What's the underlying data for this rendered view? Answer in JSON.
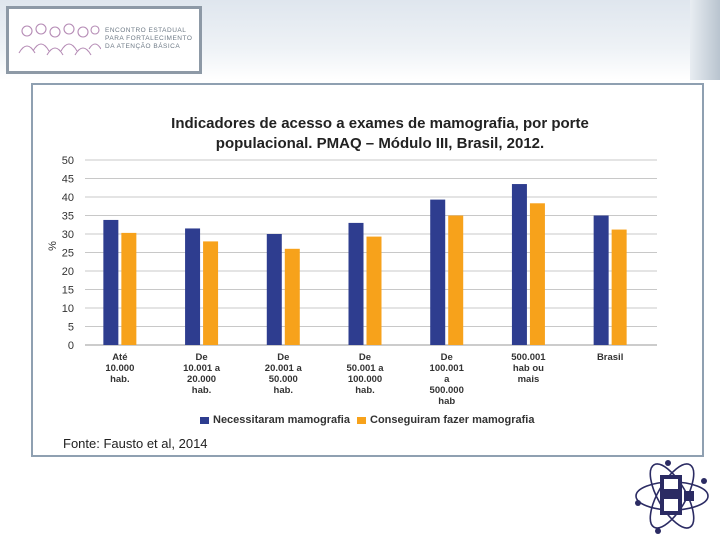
{
  "header": {
    "logo_lines": [
      "ENCONTRO ESTADUAL",
      "PARA FORTALECIMENTO",
      "DA ATENÇÃO BÁSICA"
    ]
  },
  "chart_data": {
    "type": "bar",
    "title_line1": "Indicadores de acesso a exames de mamografia, por porte",
    "title_line2": "populacional. PMAQ – Módulo III, Brasil, 2012.",
    "ylabel": "%",
    "xlabel": "",
    "ylim": [
      0,
      50
    ],
    "yticks": [
      0,
      5,
      10,
      15,
      20,
      25,
      30,
      35,
      40,
      45,
      50
    ],
    "categories": [
      [
        "Até",
        "10.000",
        "hab."
      ],
      [
        "De",
        "10.001 a",
        "20.000",
        "hab."
      ],
      [
        "De",
        "20.001 a",
        "50.000",
        "hab."
      ],
      [
        "De",
        "50.001 a",
        "100.000",
        "hab."
      ],
      [
        "De",
        "100.001",
        "a",
        "500.000",
        "hab"
      ],
      [
        "500.001",
        "hab ou",
        "mais"
      ],
      [
        "Brasil"
      ]
    ],
    "series": [
      {
        "name": "Necessitaram mamografia",
        "color": "#2e3d8f",
        "values": [
          33.8,
          31.5,
          30.0,
          33.0,
          39.3,
          43.5,
          35.0
        ]
      },
      {
        "name": "Conseguiram fazer mamografia",
        "color": "#f7a21b",
        "values": [
          30.3,
          28.0,
          26.0,
          29.3,
          35.0,
          38.3,
          31.2
        ]
      }
    ],
    "legend_position": "bottom",
    "grid": true
  },
  "source": "Fonte: Fausto et al, 2014"
}
